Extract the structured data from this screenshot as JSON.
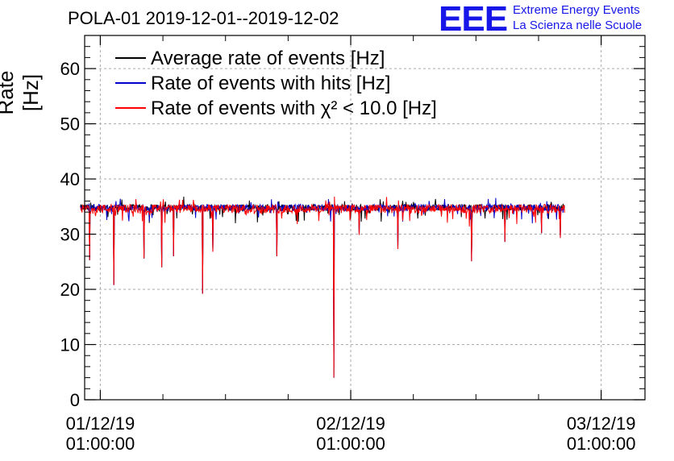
{
  "chart_data": {
    "type": "line",
    "title": "POLA-01 2019-12-01--2019-12-02",
    "ylabel": "Rate [Hz]",
    "xlabel": "",
    "ylim": [
      0,
      66
    ],
    "yticks": [
      0,
      10,
      20,
      30,
      40,
      50,
      60
    ],
    "xlim_hours": [
      -1.5,
      52.2
    ],
    "xticks": [
      {
        "hour": 0,
        "date": "01/12/19",
        "time": "01:00:00"
      },
      {
        "hour": 24,
        "date": "02/12/19",
        "time": "01:00:00"
      },
      {
        "hour": 48,
        "date": "03/12/19",
        "time": "01:00:00"
      }
    ],
    "grid": true,
    "legend_position": "top-left",
    "series": [
      {
        "name": "Average rate of events [Hz]",
        "color": "#000000",
        "baseline": 34.8,
        "noise": 0.6
      },
      {
        "name": "Rate of events with hits [Hz]",
        "color": "#0000cc",
        "baseline": 34.8,
        "noise": 0.6
      },
      {
        "name": "Rate of events with χ² < 10.0 [Hz]",
        "color": "#ff0000",
        "baseline": 34.6,
        "noise": 0.8
      }
    ],
    "data_range_hours": [
      -1.9,
      44.5
    ],
    "dips": [
      {
        "hour": -1.0,
        "value": 25.3
      },
      {
        "hour": 1.3,
        "value": 20.8
      },
      {
        "hour": 4.2,
        "value": 25.6
      },
      {
        "hour": 5.9,
        "value": 24.0
      },
      {
        "hour": 7.0,
        "value": 26.0
      },
      {
        "hour": 9.8,
        "value": 19.2
      },
      {
        "hour": 10.8,
        "value": 26.8
      },
      {
        "hour": 16.9,
        "value": 26.0
      },
      {
        "hour": 22.4,
        "value": 4.0
      },
      {
        "hour": 24.8,
        "value": 29.9
      },
      {
        "hour": 28.5,
        "value": 27.3
      },
      {
        "hour": 35.6,
        "value": 25.1
      },
      {
        "hour": 38.8,
        "value": 28.6
      },
      {
        "hour": 42.3,
        "value": 30.2
      },
      {
        "hour": 44.1,
        "value": 29.3
      }
    ]
  },
  "logo": {
    "mark": "EEE",
    "line1": "Extreme Energy Events",
    "line2": "La Scienza nelle Scuole"
  }
}
